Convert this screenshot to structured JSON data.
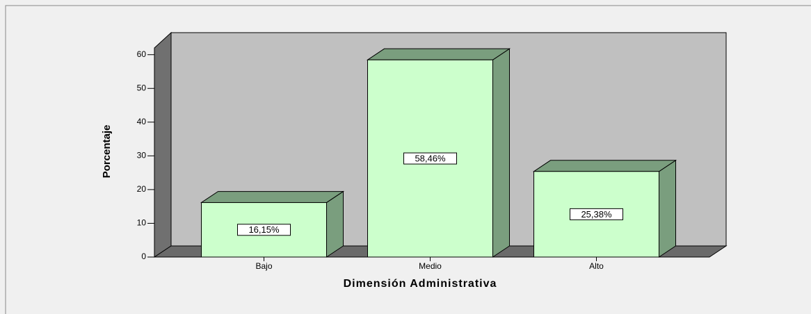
{
  "chart_data": {
    "type": "bar3d",
    "x_label": "Dimensión Administrativa",
    "y_label": "Porcentaje",
    "categories": [
      "Bajo",
      "Medio",
      "Alto"
    ],
    "values": [
      16.15,
      58.46,
      25.38
    ],
    "value_labels": [
      "16,15%",
      "58,46%",
      "25,38%"
    ],
    "color": "#ccffcc",
    "ylim": [
      0,
      62
    ],
    "yticks": [
      0,
      10,
      20,
      30,
      40,
      50,
      60
    ]
  }
}
